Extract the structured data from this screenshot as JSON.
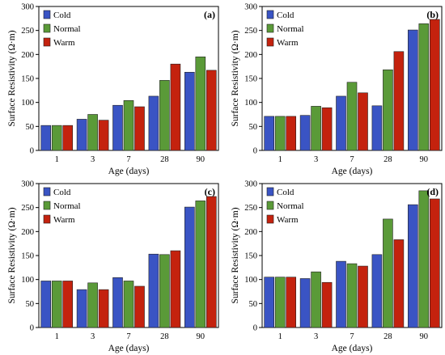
{
  "colors": {
    "cold": "#3a54c4",
    "normal": "#5a9a38",
    "warm": "#c4220e"
  },
  "chart_data": [
    {
      "type": "bar",
      "panel_label": "(a)",
      "categories": [
        "1",
        "3",
        "7",
        "28",
        "90"
      ],
      "series": [
        {
          "name": "Cold",
          "values": [
            52,
            65,
            94,
            113,
            163
          ]
        },
        {
          "name": "Normal",
          "values": [
            52,
            75,
            104,
            146,
            195
          ]
        },
        {
          "name": "Warm",
          "values": [
            52,
            63,
            91,
            180,
            167
          ]
        }
      ],
      "xlabel": "Age (days)",
      "ylabel": "Surface Resistivity (Ω·m)",
      "ylim": [
        0,
        300
      ],
      "yticks": [
        0,
        50,
        100,
        150,
        200,
        250,
        300
      ],
      "legend": "top-left",
      "grid": false
    },
    {
      "type": "bar",
      "panel_label": "(b)",
      "categories": [
        "1",
        "3",
        "7",
        "28",
        "90"
      ],
      "series": [
        {
          "name": "Cold",
          "values": [
            71,
            73,
            113,
            93,
            251
          ]
        },
        {
          "name": "Normal",
          "values": [
            71,
            92,
            142,
            168,
            264
          ]
        },
        {
          "name": "Warm",
          "values": [
            71,
            89,
            120,
            206,
            273
          ]
        }
      ],
      "xlabel": "Age (days)",
      "ylabel": "Surface Resistivity (Ω·m)",
      "ylim": [
        0,
        300
      ],
      "yticks": [
        0,
        50,
        100,
        150,
        200,
        250,
        300
      ],
      "legend": "top-left",
      "grid": false
    },
    {
      "type": "bar",
      "panel_label": "(c)",
      "categories": [
        "1",
        "3",
        "7",
        "28",
        "90"
      ],
      "series": [
        {
          "name": "Cold",
          "values": [
            97,
            79,
            104,
            153,
            251
          ]
        },
        {
          "name": "Normal",
          "values": [
            97,
            93,
            97,
            152,
            264
          ]
        },
        {
          "name": "Warm",
          "values": [
            97,
            79,
            86,
            160,
            273
          ]
        }
      ],
      "xlabel": "Age (days)",
      "ylabel": "Surface Resistivity (Ω·m)",
      "ylim": [
        0,
        300
      ],
      "yticks": [
        0,
        50,
        100,
        150,
        200,
        250,
        300
      ],
      "legend": "top-left",
      "grid": false
    },
    {
      "type": "bar",
      "panel_label": "(d)",
      "categories": [
        "1",
        "3",
        "7",
        "28",
        "90"
      ],
      "series": [
        {
          "name": "Cold",
          "values": [
            105,
            102,
            138,
            152,
            256
          ]
        },
        {
          "name": "Normal",
          "values": [
            105,
            116,
            133,
            226,
            285
          ]
        },
        {
          "name": "Warm",
          "values": [
            105,
            94,
            128,
            183,
            268
          ]
        }
      ],
      "xlabel": "Age (days)",
      "ylabel": "Surface Resistivity (Ω·m)",
      "ylim": [
        0,
        300
      ],
      "yticks": [
        0,
        50,
        100,
        150,
        200,
        250,
        300
      ],
      "legend": "top-left",
      "grid": false
    }
  ]
}
